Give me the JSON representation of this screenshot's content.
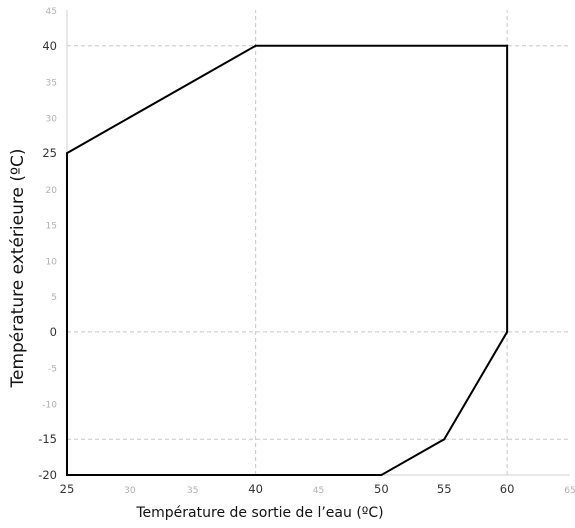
{
  "chart_data": {
    "type": "line",
    "xlabel": "Température de sortie de l’eau (ºC)",
    "ylabel": "Température extérieure (ºC)",
    "xlim": [
      25,
      65
    ],
    "ylim": [
      -20,
      45
    ],
    "x_ticks": [
      25,
      30,
      35,
      40,
      45,
      50,
      55,
      60,
      65
    ],
    "y_ticks": [
      -20,
      -15,
      -10,
      -5,
      0,
      5,
      10,
      15,
      20,
      25,
      30,
      35,
      40,
      45
    ],
    "x_major_ticks": [
      25,
      40,
      50,
      55,
      60
    ],
    "y_major_ticks": [
      -20,
      -15,
      0,
      25,
      40
    ],
    "x_tick_labels": [
      "25",
      "30",
      "35",
      "40",
      "45",
      "50",
      "55",
      "60",
      "65"
    ],
    "y_tick_labels": [
      "-20",
      "-15",
      "-10",
      "-5",
      "0",
      "5",
      "10",
      "15",
      "20",
      "25",
      "30",
      "35",
      "40",
      "45"
    ],
    "guide_lines": {
      "vertical": [
        40,
        60
      ],
      "horizontal": [
        40,
        0,
        -15
      ]
    },
    "grid": false,
    "legend": "none",
    "series": [
      {
        "closed": true,
        "color": "#000000",
        "points": [
          {
            "x": 25,
            "y": 25
          },
          {
            "x": 40,
            "y": 40
          },
          {
            "x": 60,
            "y": 40
          },
          {
            "x": 60,
            "y": 0
          },
          {
            "x": 55,
            "y": -15
          },
          {
            "x": 50,
            "y": -20
          },
          {
            "x": 25,
            "y": -20
          }
        ]
      }
    ],
    "colors": {
      "outline": "#000000",
      "guide": "#c8c8c8",
      "axis": "#d0d0d0",
      "major_tick_text": "#333333",
      "minor_tick_text": "#b0b0b0"
    }
  }
}
